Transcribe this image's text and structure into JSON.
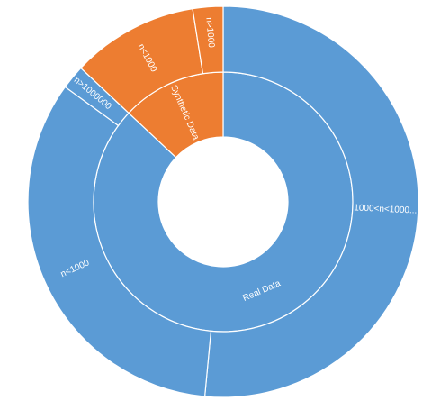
{
  "chart_data": {
    "type": "sunburst",
    "title": "",
    "colors": {
      "Real Data": "#5b9bd5",
      "Synthetic Data": "#ed7d31",
      "border": "#ffffff",
      "label": "#ffffff"
    },
    "inner_ring": [
      {
        "name": "Real Data",
        "value": 87
      },
      {
        "name": "Synthetic Data",
        "value": 13
      }
    ],
    "outer_ring": [
      {
        "parent": "Real Data",
        "name": "1000<n<1000...",
        "value": 51.5
      },
      {
        "parent": "Real Data",
        "name": "n<1000",
        "value": 33.5
      },
      {
        "parent": "Real Data",
        "name": "n>1000000",
        "value": 2
      },
      {
        "parent": "Synthetic Data",
        "name": "n<1000",
        "value": 10.5
      },
      {
        "parent": "Synthetic Data",
        "name": "n>1000",
        "value": 2.5
      }
    ]
  }
}
